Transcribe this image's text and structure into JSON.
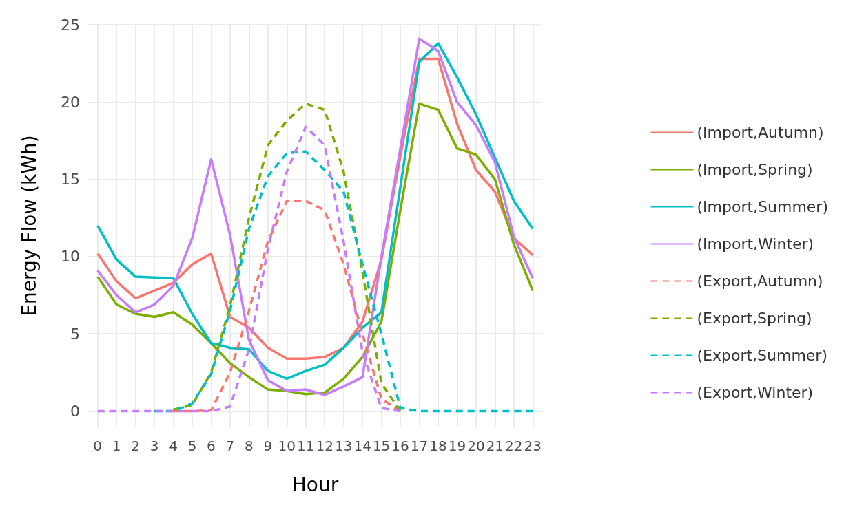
{
  "chart_data": {
    "type": "line",
    "xlabel": "Hour",
    "ylabel": "Energy Flow (kWh)",
    "x": [
      0,
      1,
      2,
      3,
      4,
      5,
      6,
      7,
      8,
      9,
      10,
      11,
      12,
      13,
      14,
      15,
      16,
      17,
      18,
      19,
      20,
      21,
      22,
      23
    ],
    "xlim": [
      -0.5,
      23.5
    ],
    "xticks": [
      0,
      1,
      2,
      3,
      4,
      5,
      6,
      7,
      8,
      9,
      10,
      11,
      12,
      13,
      14,
      15,
      16,
      17,
      18,
      19,
      20,
      21,
      22,
      23
    ],
    "ylim": [
      -1,
      25
    ],
    "yticks": [
      0,
      5,
      10,
      15,
      20,
      25
    ],
    "grid": true,
    "legend": "right",
    "marker": "none",
    "series": [
      {
        "name": "(Import,Autumn)",
        "color": "#f8766d",
        "line_style": "solid",
        "values": [
          10.2,
          8.4,
          7.3,
          7.8,
          8.3,
          9.5,
          10.2,
          6.1,
          5.4,
          4.1,
          3.4,
          3.4,
          3.5,
          4.1,
          5.8,
          9.8,
          16.5,
          22.8,
          22.8,
          18.6,
          15.6,
          14.2,
          11.2,
          10.1
        ]
      },
      {
        "name": "(Import,Spring)",
        "color": "#7cae00",
        "line_style": "solid",
        "values": [
          8.7,
          6.9,
          6.3,
          6.1,
          6.4,
          5.6,
          4.4,
          3.1,
          2.2,
          1.4,
          1.3,
          1.1,
          1.2,
          2.1,
          3.5,
          5.8,
          13.0,
          19.9,
          19.5,
          17.0,
          16.6,
          15.0,
          10.8,
          7.8
        ]
      },
      {
        "name": "(Import,Summer)",
        "color": "#00bfc4",
        "line_style": "solid",
        "values": [
          12.0,
          9.8,
          8.7,
          8.65,
          8.6,
          6.3,
          4.4,
          4.1,
          4.0,
          2.6,
          2.1,
          2.6,
          3.0,
          4.1,
          5.4,
          6.4,
          14.5,
          22.6,
          23.8,
          21.6,
          19.2,
          16.4,
          13.6,
          11.8
        ]
      },
      {
        "name": "(Import,Winter)",
        "color": "#c77cff",
        "line_style": "solid",
        "values": [
          9.1,
          7.5,
          6.4,
          6.9,
          8.1,
          11.2,
          16.3,
          11.4,
          4.6,
          2.0,
          1.3,
          1.4,
          1.05,
          1.6,
          2.2,
          10.0,
          17.0,
          24.1,
          23.3,
          20.0,
          18.5,
          16.1,
          11.3,
          8.6
        ]
      },
      {
        "name": "(Export,Autumn)",
        "color": "#f8766d",
        "line_style": "dashed",
        "values": [
          null,
          null,
          null,
          null,
          0,
          0,
          0.05,
          2.5,
          6.5,
          11,
          13.6,
          13.6,
          13,
          9.5,
          5,
          0.8,
          0,
          null,
          null,
          null,
          null,
          null,
          null,
          null
        ]
      },
      {
        "name": "(Export,Spring)",
        "color": "#7cae00",
        "line_style": "dashed",
        "values": [
          null,
          null,
          null,
          null,
          0.1,
          0.4,
          2.5,
          6.8,
          12.5,
          17.2,
          18.8,
          19.9,
          19.5,
          15.5,
          9,
          1.8,
          0,
          null,
          null,
          null,
          null,
          null,
          null,
          null
        ]
      },
      {
        "name": "(Export,Summer)",
        "color": "#00bfc4",
        "line_style": "dashed",
        "values": [
          null,
          null,
          null,
          0,
          0,
          0.5,
          2.4,
          6.5,
          11.8,
          15.2,
          16.7,
          16.8,
          15.6,
          14.2,
          9.5,
          5,
          0.2,
          0,
          0,
          0,
          0,
          0,
          0,
          0
        ]
      },
      {
        "name": "(Export,Winter)",
        "color": "#c77cff",
        "line_style": "dashed",
        "values": [
          0,
          0,
          0,
          0,
          0,
          0,
          0,
          0.3,
          4,
          10.5,
          15.5,
          18.4,
          17.2,
          11,
          3.8,
          0.2,
          0,
          null,
          null,
          null,
          null,
          null,
          null,
          null
        ]
      }
    ]
  }
}
